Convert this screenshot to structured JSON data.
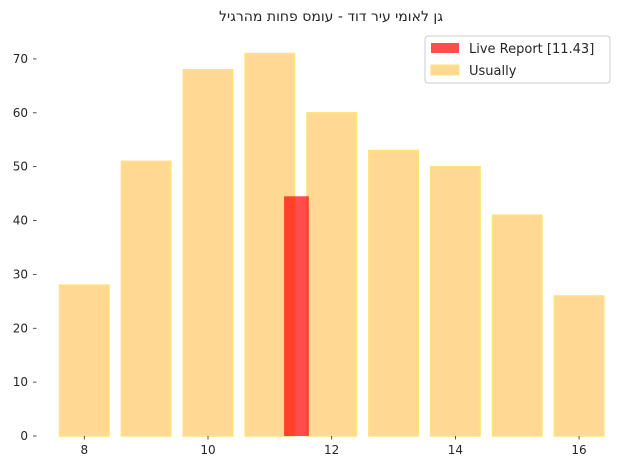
{
  "chart_data": {
    "type": "bar",
    "title": "גן לאומי עיר דוד  -  עומס פחות מהרגיל",
    "xlabel": "",
    "ylabel": "",
    "xlim": [
      7.3,
      16.5
    ],
    "ylim": [
      0,
      75
    ],
    "x_ticks": [
      8,
      10,
      12,
      14,
      16
    ],
    "y_ticks": [
      0,
      10,
      20,
      30,
      40,
      50,
      60,
      70
    ],
    "grid": false,
    "legend_position": "top-right",
    "series": [
      {
        "name": "Live Report [11.43]",
        "color": "#ff0000",
        "x": [
          11.43
        ],
        "values": [
          44.5
        ],
        "bar_width": 0.4
      },
      {
        "name": "Usually",
        "color": "#ffc04d",
        "edge_color": "#ffe27a",
        "x": [
          8,
          9,
          10,
          11,
          12,
          13,
          14,
          15,
          16
        ],
        "values": [
          28,
          51,
          68,
          71,
          60,
          53,
          50,
          41,
          26
        ],
        "bar_width": 0.8
      }
    ]
  }
}
